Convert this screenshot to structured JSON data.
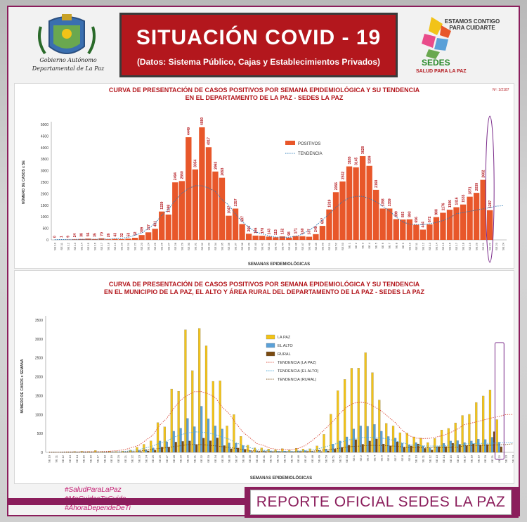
{
  "header": {
    "title": "SITUACIÓN  COVID - 19",
    "subtitle": "(Datos: Sistema Público, Cajas y Establecimientos Privados)",
    "crest_line1": "Gobierno Autónomo",
    "crest_line2": "Departamental de La Paz",
    "sedes_tagline": "ESTAMOS CONTIGO PARA CUIDARTE",
    "sedes_name": "SEDES",
    "sedes_slogan": "SALUD PARA LA PAZ"
  },
  "footer": {
    "hashtags": [
      "#SaludParaLaPaz",
      "#MeCuidasTeCuido",
      "#AhoraDependeDeTi"
    ],
    "report": "REPORTE OFICIAL SEDES LA PAZ"
  },
  "chart_data": [
    {
      "type": "bar",
      "title_line1": "CURVA DE PRESENTACIÓN DE CASOS POSITIVOS POR SEMANA EPIDEMIOLÓGICA Y SU TENDENCIA",
      "title_line2": "EN EL DEPARTAMENTO DE LA PAZ - SEDES LA PAZ",
      "corner_label": "Nº: 1/2187",
      "xlabel": "SEMANAS EPIDEMIOLÓGICAS",
      "ylabel": "NÚMERO DE CASOS x SE",
      "ylim": [
        0,
        5000
      ],
      "yticks": [
        0,
        500,
        1000,
        1500,
        2000,
        2500,
        3000,
        3500,
        4000,
        4500,
        5000
      ],
      "grid": false,
      "legend_position": "top-center",
      "categories": [
        "SE 10",
        "SE 11",
        "SE 12",
        "SE 13",
        "SE 14",
        "SE 15",
        "SE 16",
        "SE 17",
        "SE 18",
        "SE 19",
        "SE 20",
        "SE 21",
        "SE 22",
        "SE 23",
        "SE 24",
        "SE 25",
        "SE 26",
        "SE 27",
        "SE 28",
        "SE 29",
        "SE 30",
        "SE 31",
        "SE 32",
        "SE 33",
        "SE 34",
        "SE 35",
        "SE 36",
        "SE 37",
        "SE 38",
        "SE 39",
        "SE 40",
        "SE 41",
        "SE 42",
        "SE 43",
        "SE 44",
        "SE 45",
        "SE 46",
        "SE 47",
        "SE 48",
        "SE 49",
        "SE 50",
        "SE 51",
        "SE 52",
        "SE 53",
        "SE 1",
        "SE 2",
        "SE 3",
        "SE 4",
        "SE 5",
        "SE 6",
        "SE 7",
        "SE 8",
        "SE 9",
        "SE 10",
        "SE 11",
        "SE 12",
        "SE 13",
        "SE 14",
        "SE 15",
        "SE 16",
        "SE 17",
        "SE 18",
        "SE 19",
        "SE 20",
        "SE 21",
        "SE 22",
        "SE 23",
        "SE 24"
      ],
      "series": [
        {
          "name": "POSITIVOS",
          "color": "#e8572a",
          "values": [
            0,
            1,
            9,
            24,
            38,
            56,
            35,
            70,
            26,
            43,
            32,
            53,
            92,
            209,
            327,
            481,
            1229,
            1098,
            2494,
            2550,
            4449,
            3054,
            4880,
            4017,
            2963,
            2693,
            1047,
            1357,
            687,
            266,
            186,
            178,
            143,
            113,
            152,
            98,
            171,
            160,
            137,
            249,
            607,
            1319,
            2066,
            2532,
            3185,
            3145,
            3628,
            3209,
            2168,
            1358,
            1359,
            899,
            883,
            893,
            656,
            444,
            672,
            988,
            1176,
            1306,
            1416,
            1533,
            1871,
            2039,
            2602,
            1287,
            null,
            null
          ],
          "labels": [
            "0",
            "1",
            "9",
            "24",
            "38",
            "56",
            "35",
            "70",
            "26",
            "43",
            "32",
            "53",
            "92",
            "209",
            "327",
            "481",
            "1229",
            "1098",
            "2494",
            "2550",
            "4449",
            "3054",
            "4880",
            "4017",
            "2963",
            "2693",
            "1047",
            "1357",
            "687",
            "266",
            "186",
            "178",
            "143",
            "113",
            "152",
            "98",
            "171",
            "160",
            "137",
            "249",
            "607",
            "1319",
            "2066",
            "2532",
            "3185",
            "3145",
            "3628",
            "3209",
            "2168",
            "1358",
            "1359",
            "899",
            "883",
            "893",
            "656",
            "444",
            "672",
            "988",
            "1176",
            "1306",
            "1416",
            "1533",
            "1871",
            "2039",
            "2602",
            "1287",
            "",
            ""
          ]
        },
        {
          "name": "TENDENCIA",
          "color": "#2a7ab8",
          "style": "dotted"
        }
      ]
    },
    {
      "type": "bar",
      "title_line1": "CURVA DE PRESENTACIÓN DE CASOS POSITIVOS POR SEMANA EPIDEMIOLÓGICA Y SU TENDENCIA",
      "title_line2": "EN EL  MUNICIPIO DE LA PAZ, EL ALTO Y ÁREA RURAL DEL DEPARTAMENTO DE LA PAZ - SEDES LA PAZ",
      "xlabel": "SEMANAS EPIDEMIOLÓGICAS",
      "ylabel": "NÚMERO DE CASOS x SEMANA",
      "ylim": [
        0,
        3500
      ],
      "yticks": [
        0,
        500,
        1000,
        1500,
        2000,
        2500,
        3000,
        3500
      ],
      "grid": false,
      "legend_position": "top-center",
      "series": [
        {
          "name": "LA PAZ",
          "color": "#f2c318",
          "values": [
            0,
            1,
            5,
            13,
            24,
            30,
            23,
            50,
            20,
            32,
            22,
            36,
            62,
            138,
            214,
            305,
            788,
            675,
            1675,
            1618,
            3245,
            2162,
            3282,
            2820,
            1880,
            1894,
            700,
            1001,
            424,
            190,
            120,
            118,
            90,
            70,
            100,
            60,
            110,
            90,
            95,
            170,
            477,
            1011,
            1632,
            1931,
            2226,
            2230,
            2638,
            2111,
            1386,
            767,
            699,
            521,
            512,
            410,
            380,
            260,
            370,
            594,
            634,
            781,
            977,
            1007,
            1321,
            1491,
            1653,
            867,
            null,
            null
          ]
        },
        {
          "name": "EL ALTO",
          "color": "#5aa0d8",
          "values": [
            0,
            0,
            3,
            8,
            10,
            18,
            9,
            15,
            4,
            8,
            7,
            12,
            22,
            50,
            75,
            120,
            300,
            280,
            560,
            640,
            900,
            680,
            1220,
            890,
            700,
            620,
            250,
            240,
            180,
            50,
            45,
            40,
            35,
            30,
            35,
            25,
            40,
            45,
            30,
            55,
            90,
            220,
            300,
            410,
            620,
            700,
            690,
            740,
            560,
            420,
            380,
            240,
            200,
            260,
            170,
            120,
            150,
            240,
            300,
            310,
            260,
            300,
            350,
            340,
            400,
            270,
            null,
            null
          ]
        },
        {
          "name": "RURAL",
          "color": "#7a4a10",
          "values": [
            0,
            0,
            1,
            3,
            4,
            8,
            3,
            5,
            2,
            3,
            3,
            5,
            8,
            21,
            38,
            56,
            141,
            143,
            274,
            292,
            304,
            212,
            378,
            307,
            383,
            179,
            97,
            116,
            83,
            26,
            21,
            20,
            18,
            13,
            17,
            13,
            21,
            25,
            12,
            24,
            40,
            88,
            134,
            191,
            339,
            215,
            300,
            358,
            222,
            171,
            280,
            138,
            171,
            223,
            106,
            64,
            152,
            154,
            242,
            215,
            179,
            226,
            200,
            208,
            549,
            150,
            null,
            null
          ]
        },
        {
          "name": "TENDENCIA (LA PAZ)",
          "color": "#d94a3a",
          "style": "dotted"
        },
        {
          "name": "TENDENCIA (EL ALTO)",
          "color": "#4aa8d8",
          "style": "dotted"
        },
        {
          "name": "TENDENCIA (RURAL)",
          "color": "#7a4a10",
          "style": "dotted"
        }
      ]
    }
  ]
}
